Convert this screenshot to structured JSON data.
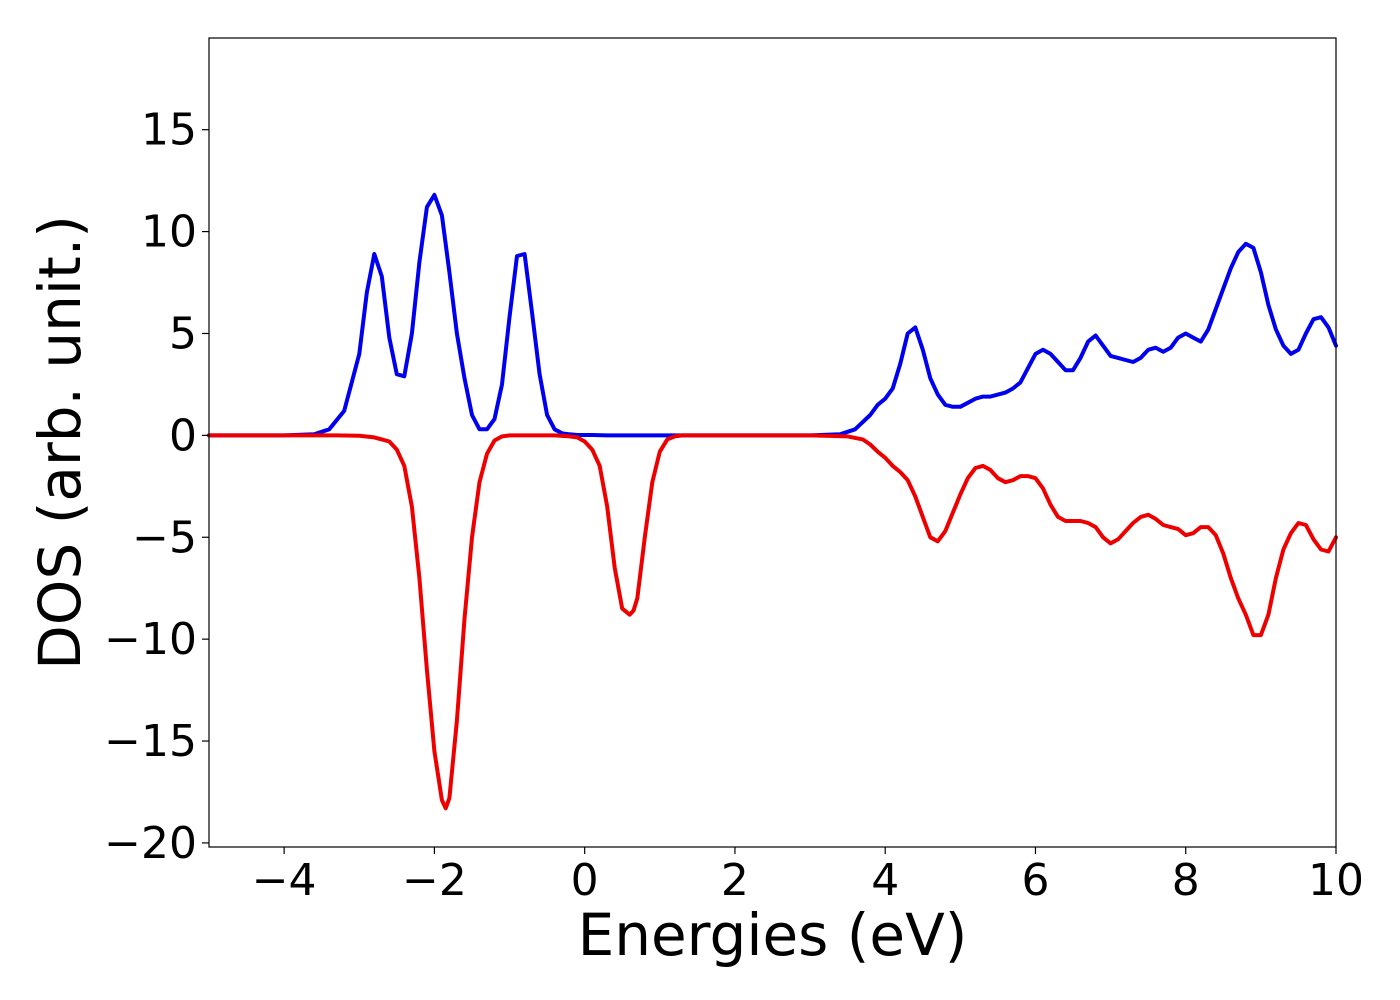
{
  "chart_data": {
    "type": "line",
    "title": "",
    "xlabel": "Energies (eV)",
    "ylabel": "DOS (arb. unit.)",
    "xlim": [
      -5,
      10
    ],
    "ylim": [
      -20.2,
      19.5
    ],
    "xticks": [
      -4,
      -2,
      0,
      2,
      4,
      6,
      8,
      10
    ],
    "xtick_labels": [
      "−4",
      "−2",
      "0",
      "2",
      "4",
      "6",
      "8",
      "10"
    ],
    "yticks": [
      -20,
      -15,
      -10,
      -5,
      0,
      5,
      10,
      15
    ],
    "ytick_labels": [
      "−20",
      "−15",
      "−10",
      "−5",
      "0",
      "5",
      "10",
      "15"
    ],
    "grid": false,
    "legend": "none",
    "series": [
      {
        "color": "#0000ee",
        "x": [
          -5,
          -4,
          -3.6,
          -3.4,
          -3.2,
          -3.0,
          -2.9,
          -2.8,
          -2.7,
          -2.6,
          -2.5,
          -2.4,
          -2.3,
          -2.2,
          -2.1,
          -2.0,
          -1.9,
          -1.8,
          -1.7,
          -1.6,
          -1.5,
          -1.4,
          -1.3,
          -1.2,
          -1.1,
          -1.0,
          -0.9,
          -0.8,
          -0.7,
          -0.6,
          -0.5,
          -0.4,
          -0.3,
          -0.2,
          -0.1,
          0.0,
          0.1,
          0.3,
          1.0,
          2.0,
          3.0,
          3.4,
          3.6,
          3.8,
          3.9,
          4.0,
          4.1,
          4.2,
          4.3,
          4.4,
          4.5,
          4.6,
          4.7,
          4.8,
          4.9,
          5.0,
          5.1,
          5.2,
          5.3,
          5.4,
          5.5,
          5.6,
          5.7,
          5.8,
          5.9,
          6.0,
          6.1,
          6.2,
          6.3,
          6.4,
          6.5,
          6.6,
          6.7,
          6.8,
          6.9,
          7.0,
          7.1,
          7.2,
          7.3,
          7.4,
          7.5,
          7.6,
          7.7,
          7.8,
          7.9,
          8.0,
          8.1,
          8.2,
          8.3,
          8.4,
          8.5,
          8.6,
          8.7,
          8.8,
          8.9,
          9.0,
          9.1,
          9.2,
          9.3,
          9.4,
          9.5,
          9.6,
          9.7,
          9.8,
          9.9,
          10.0
        ],
        "y": [
          0,
          0,
          0.05,
          0.3,
          1.2,
          4.0,
          7.0,
          8.9,
          7.8,
          4.8,
          3.0,
          2.9,
          5.0,
          8.5,
          11.2,
          11.8,
          10.8,
          8.0,
          5.0,
          2.8,
          1.0,
          0.3,
          0.3,
          0.8,
          2.5,
          5.8,
          8.8,
          8.9,
          6.0,
          3.0,
          1.0,
          0.3,
          0.1,
          0.05,
          0.02,
          0.02,
          0.02,
          0.0,
          0.0,
          0.0,
          0.0,
          0.05,
          0.3,
          1.0,
          1.5,
          1.8,
          2.3,
          3.5,
          5.0,
          5.3,
          4.2,
          2.8,
          2.0,
          1.5,
          1.4,
          1.4,
          1.6,
          1.8,
          1.9,
          1.9,
          2.0,
          2.1,
          2.3,
          2.6,
          3.3,
          4.0,
          4.2,
          4.0,
          3.6,
          3.2,
          3.2,
          3.8,
          4.6,
          4.9,
          4.4,
          3.9,
          3.8,
          3.7,
          3.6,
          3.8,
          4.2,
          4.3,
          4.1,
          4.3,
          4.8,
          5.0,
          4.8,
          4.6,
          5.2,
          6.2,
          7.2,
          8.2,
          9.0,
          9.4,
          9.2,
          8.0,
          6.4,
          5.2,
          4.4,
          4.0,
          4.2,
          5.0,
          5.7,
          5.8,
          5.3,
          4.4
        ]
      },
      {
        "color": "#ee0000",
        "x": [
          -5,
          -4,
          -3.3,
          -3.0,
          -2.8,
          -2.6,
          -2.5,
          -2.4,
          -2.3,
          -2.2,
          -2.1,
          -2.0,
          -1.9,
          -1.85,
          -1.8,
          -1.7,
          -1.6,
          -1.5,
          -1.4,
          -1.3,
          -1.2,
          -1.1,
          -1.0,
          -0.9,
          -0.8,
          -0.6,
          -0.4,
          -0.2,
          -0.1,
          0.0,
          0.1,
          0.2,
          0.3,
          0.4,
          0.5,
          0.6,
          0.65,
          0.7,
          0.8,
          0.9,
          1.0,
          1.1,
          1.2,
          1.3,
          1.5,
          2.0,
          3.0,
          3.5,
          3.7,
          3.8,
          3.9,
          4.0,
          4.1,
          4.2,
          4.3,
          4.4,
          4.5,
          4.6,
          4.7,
          4.8,
          4.9,
          5.0,
          5.1,
          5.2,
          5.3,
          5.4,
          5.5,
          5.6,
          5.7,
          5.8,
          5.9,
          6.0,
          6.1,
          6.2,
          6.3,
          6.4,
          6.5,
          6.6,
          6.7,
          6.8,
          6.9,
          7.0,
          7.1,
          7.2,
          7.3,
          7.4,
          7.5,
          7.6,
          7.7,
          7.8,
          7.9,
          8.0,
          8.1,
          8.2,
          8.3,
          8.4,
          8.5,
          8.6,
          8.7,
          8.8,
          8.9,
          9.0,
          9.1,
          9.2,
          9.3,
          9.4,
          9.5,
          9.6,
          9.7,
          9.8,
          9.9,
          10.0
        ],
        "y": [
          0,
          0,
          0,
          -0.02,
          -0.1,
          -0.3,
          -0.7,
          -1.5,
          -3.5,
          -7.0,
          -11.5,
          -15.5,
          -17.9,
          -18.3,
          -17.8,
          -14.0,
          -9.0,
          -5.0,
          -2.3,
          -0.9,
          -0.25,
          -0.05,
          0,
          0,
          0,
          0,
          0,
          -0.05,
          -0.1,
          -0.3,
          -0.7,
          -1.5,
          -3.5,
          -6.5,
          -8.5,
          -8.8,
          -8.6,
          -8.0,
          -5.0,
          -2.3,
          -0.8,
          -0.2,
          -0.05,
          0,
          0,
          0,
          0,
          -0.05,
          -0.2,
          -0.45,
          -0.8,
          -1.1,
          -1.5,
          -1.8,
          -2.2,
          -3.0,
          -4.0,
          -5.0,
          -5.2,
          -4.7,
          -3.8,
          -2.9,
          -2.1,
          -1.6,
          -1.5,
          -1.7,
          -2.1,
          -2.3,
          -2.2,
          -2.0,
          -2.0,
          -2.1,
          -2.6,
          -3.4,
          -4.0,
          -4.2,
          -4.2,
          -4.2,
          -4.3,
          -4.5,
          -5.0,
          -5.3,
          -5.1,
          -4.7,
          -4.3,
          -4.0,
          -3.9,
          -4.1,
          -4.4,
          -4.5,
          -4.6,
          -4.9,
          -4.8,
          -4.5,
          -4.5,
          -4.9,
          -5.8,
          -7.0,
          -8.0,
          -8.8,
          -9.8,
          -9.8,
          -8.8,
          -7.0,
          -5.6,
          -4.8,
          -4.3,
          -4.4,
          -5.1,
          -5.6,
          -5.7,
          -5.0
        ]
      }
    ]
  }
}
